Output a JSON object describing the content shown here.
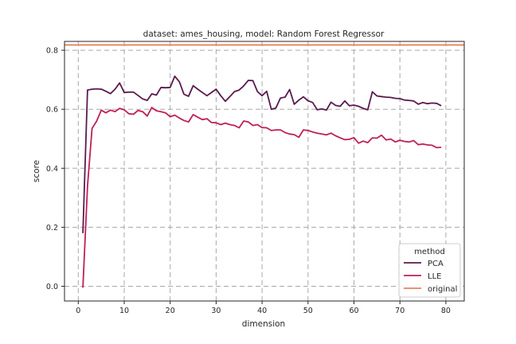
{
  "chart_data": {
    "type": "line",
    "title": "dataset: ames_housing, model: Random Forest Regressor",
    "xlabel": "dimension",
    "ylabel": "score",
    "xlim": [
      -3,
      84
    ],
    "ylim": [
      -0.05,
      0.83
    ],
    "xticks": [
      0,
      10,
      20,
      30,
      40,
      50,
      60,
      70,
      80
    ],
    "yticks": [
      0.0,
      0.2,
      0.4,
      0.6,
      0.8
    ],
    "xtick_labels": [
      "0",
      "10",
      "20",
      "30",
      "40",
      "50",
      "60",
      "70",
      "80"
    ],
    "ytick_labels": [
      "0.0",
      "0.2",
      "0.4",
      "0.6",
      "0.8"
    ],
    "grid": true,
    "legend": {
      "title": "method",
      "placement": "lower-right"
    },
    "hline": {
      "name": "original",
      "y": 0.818,
      "color": "#e8825a"
    },
    "series": [
      {
        "name": "PCA",
        "color": "#5a1a4e",
        "x": [
          1,
          2,
          3,
          4,
          5,
          6,
          7,
          8,
          9,
          10,
          11,
          12,
          13,
          14,
          15,
          16,
          17,
          18,
          19,
          20,
          21,
          22,
          23,
          24,
          25,
          26,
          27,
          28,
          29,
          30,
          31,
          32,
          33,
          34,
          35,
          36,
          37,
          38,
          39,
          40,
          41,
          42,
          43,
          44,
          45,
          46,
          47,
          48,
          49,
          50,
          51,
          52,
          53,
          54,
          55,
          56,
          57,
          58,
          59,
          60,
          61,
          62,
          63,
          64,
          65,
          66,
          67,
          68,
          69,
          70,
          71,
          72,
          73,
          74,
          75,
          76,
          77,
          78,
          79
        ],
        "values": [
          0.18,
          0.665,
          0.668,
          0.669,
          0.668,
          0.661,
          0.653,
          0.668,
          0.689,
          0.657,
          0.658,
          0.658,
          0.647,
          0.635,
          0.63,
          0.652,
          0.648,
          0.674,
          0.673,
          0.674,
          0.712,
          0.693,
          0.651,
          0.644,
          0.68,
          0.668,
          0.657,
          0.646,
          0.657,
          0.668,
          0.646,
          0.627,
          0.643,
          0.66,
          0.665,
          0.679,
          0.698,
          0.697,
          0.66,
          0.646,
          0.661,
          0.6,
          0.604,
          0.638,
          0.641,
          0.667,
          0.617,
          0.631,
          0.642,
          0.629,
          0.623,
          0.598,
          0.601,
          0.597,
          0.624,
          0.613,
          0.61,
          0.628,
          0.612,
          0.614,
          0.61,
          0.603,
          0.598,
          0.659,
          0.645,
          0.643,
          0.641,
          0.64,
          0.637,
          0.636,
          0.631,
          0.63,
          0.628,
          0.617,
          0.623,
          0.619,
          0.621,
          0.62,
          0.612
        ]
      },
      {
        "name": "LLE",
        "color": "#c01f57",
        "x": [
          1,
          2,
          3,
          4,
          5,
          6,
          7,
          8,
          9,
          10,
          11,
          12,
          13,
          14,
          15,
          16,
          17,
          18,
          19,
          20,
          21,
          22,
          23,
          24,
          25,
          26,
          27,
          28,
          29,
          30,
          31,
          32,
          33,
          34,
          35,
          36,
          37,
          38,
          39,
          40,
          41,
          42,
          43,
          44,
          45,
          46,
          47,
          48,
          49,
          50,
          51,
          52,
          53,
          54,
          55,
          56,
          57,
          58,
          59,
          60,
          61,
          62,
          63,
          64,
          65,
          66,
          67,
          68,
          69,
          70,
          71,
          72,
          73,
          74,
          75,
          76,
          77,
          78,
          79
        ],
        "values": [
          -0.005,
          0.34,
          0.535,
          0.56,
          0.597,
          0.588,
          0.597,
          0.592,
          0.603,
          0.598,
          0.585,
          0.583,
          0.596,
          0.592,
          0.577,
          0.606,
          0.595,
          0.592,
          0.588,
          0.575,
          0.58,
          0.57,
          0.562,
          0.557,
          0.582,
          0.573,
          0.565,
          0.568,
          0.555,
          0.554,
          0.548,
          0.553,
          0.548,
          0.545,
          0.537,
          0.56,
          0.557,
          0.545,
          0.548,
          0.538,
          0.537,
          0.528,
          0.53,
          0.53,
          0.521,
          0.516,
          0.514,
          0.505,
          0.53,
          0.528,
          0.523,
          0.519,
          0.516,
          0.513,
          0.519,
          0.51,
          0.503,
          0.497,
          0.498,
          0.504,
          0.485,
          0.492,
          0.487,
          0.503,
          0.502,
          0.512,
          0.496,
          0.499,
          0.489,
          0.495,
          0.491,
          0.489,
          0.494,
          0.48,
          0.482,
          0.479,
          0.478,
          0.47,
          0.471
        ]
      }
    ]
  }
}
